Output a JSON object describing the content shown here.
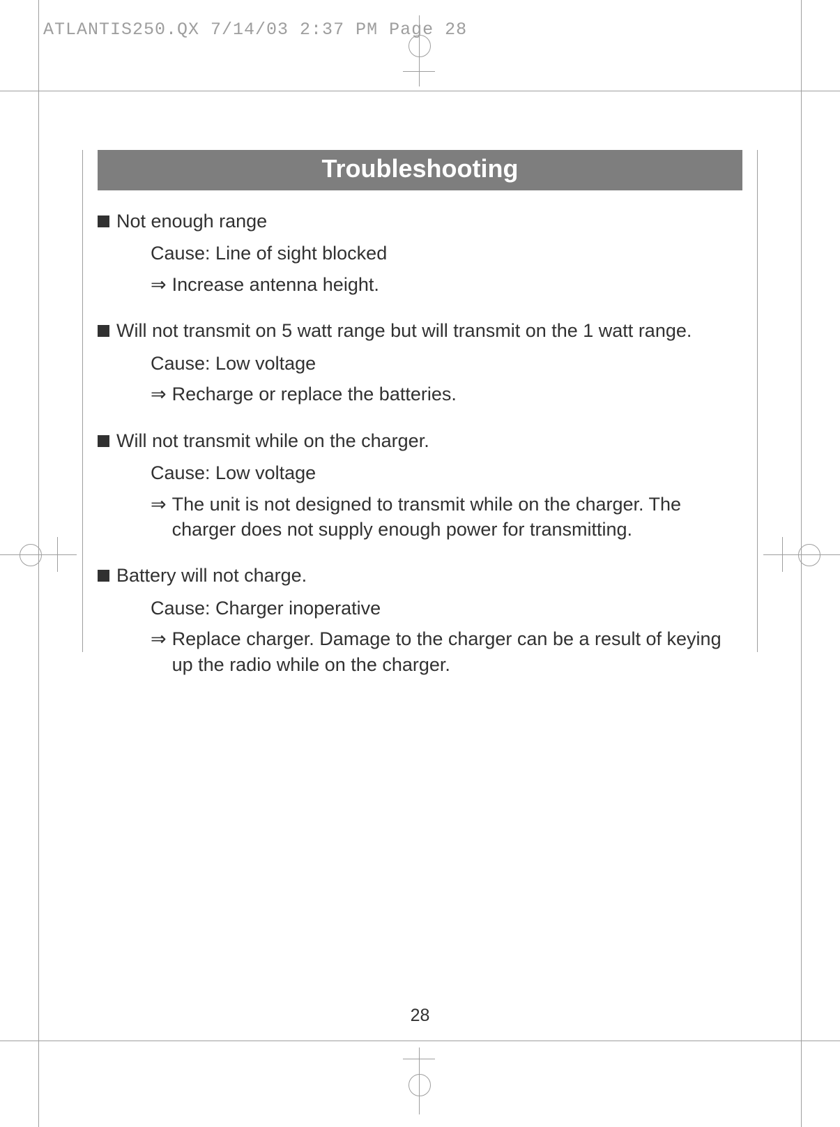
{
  "slug": "ATLANTIS250.QX  7/14/03 2:37 PM  Page 28",
  "title": "Troubleshooting",
  "pageNumber": "28",
  "items": [
    {
      "heading": "Not enough range",
      "cause": "Cause: Line of sight blocked",
      "solution": "Increase antenna height."
    },
    {
      "heading": "Will not transmit on 5 watt range but will transmit on the 1 watt range.",
      "cause": "Cause: Low voltage",
      "solution": "Recharge or replace the batteries."
    },
    {
      "heading": "Will not transmit while on the charger.",
      "cause": "Cause: Low voltage",
      "solution": "The unit is not designed to transmit while on the charger. The charger does not supply enough power for transmitting."
    },
    {
      "heading": "Battery will not charge.",
      "cause": "Cause: Charger inoperative",
      "solution": "Replace charger. Damage to the charger can be a result of keying up the radio while on the charger."
    }
  ]
}
